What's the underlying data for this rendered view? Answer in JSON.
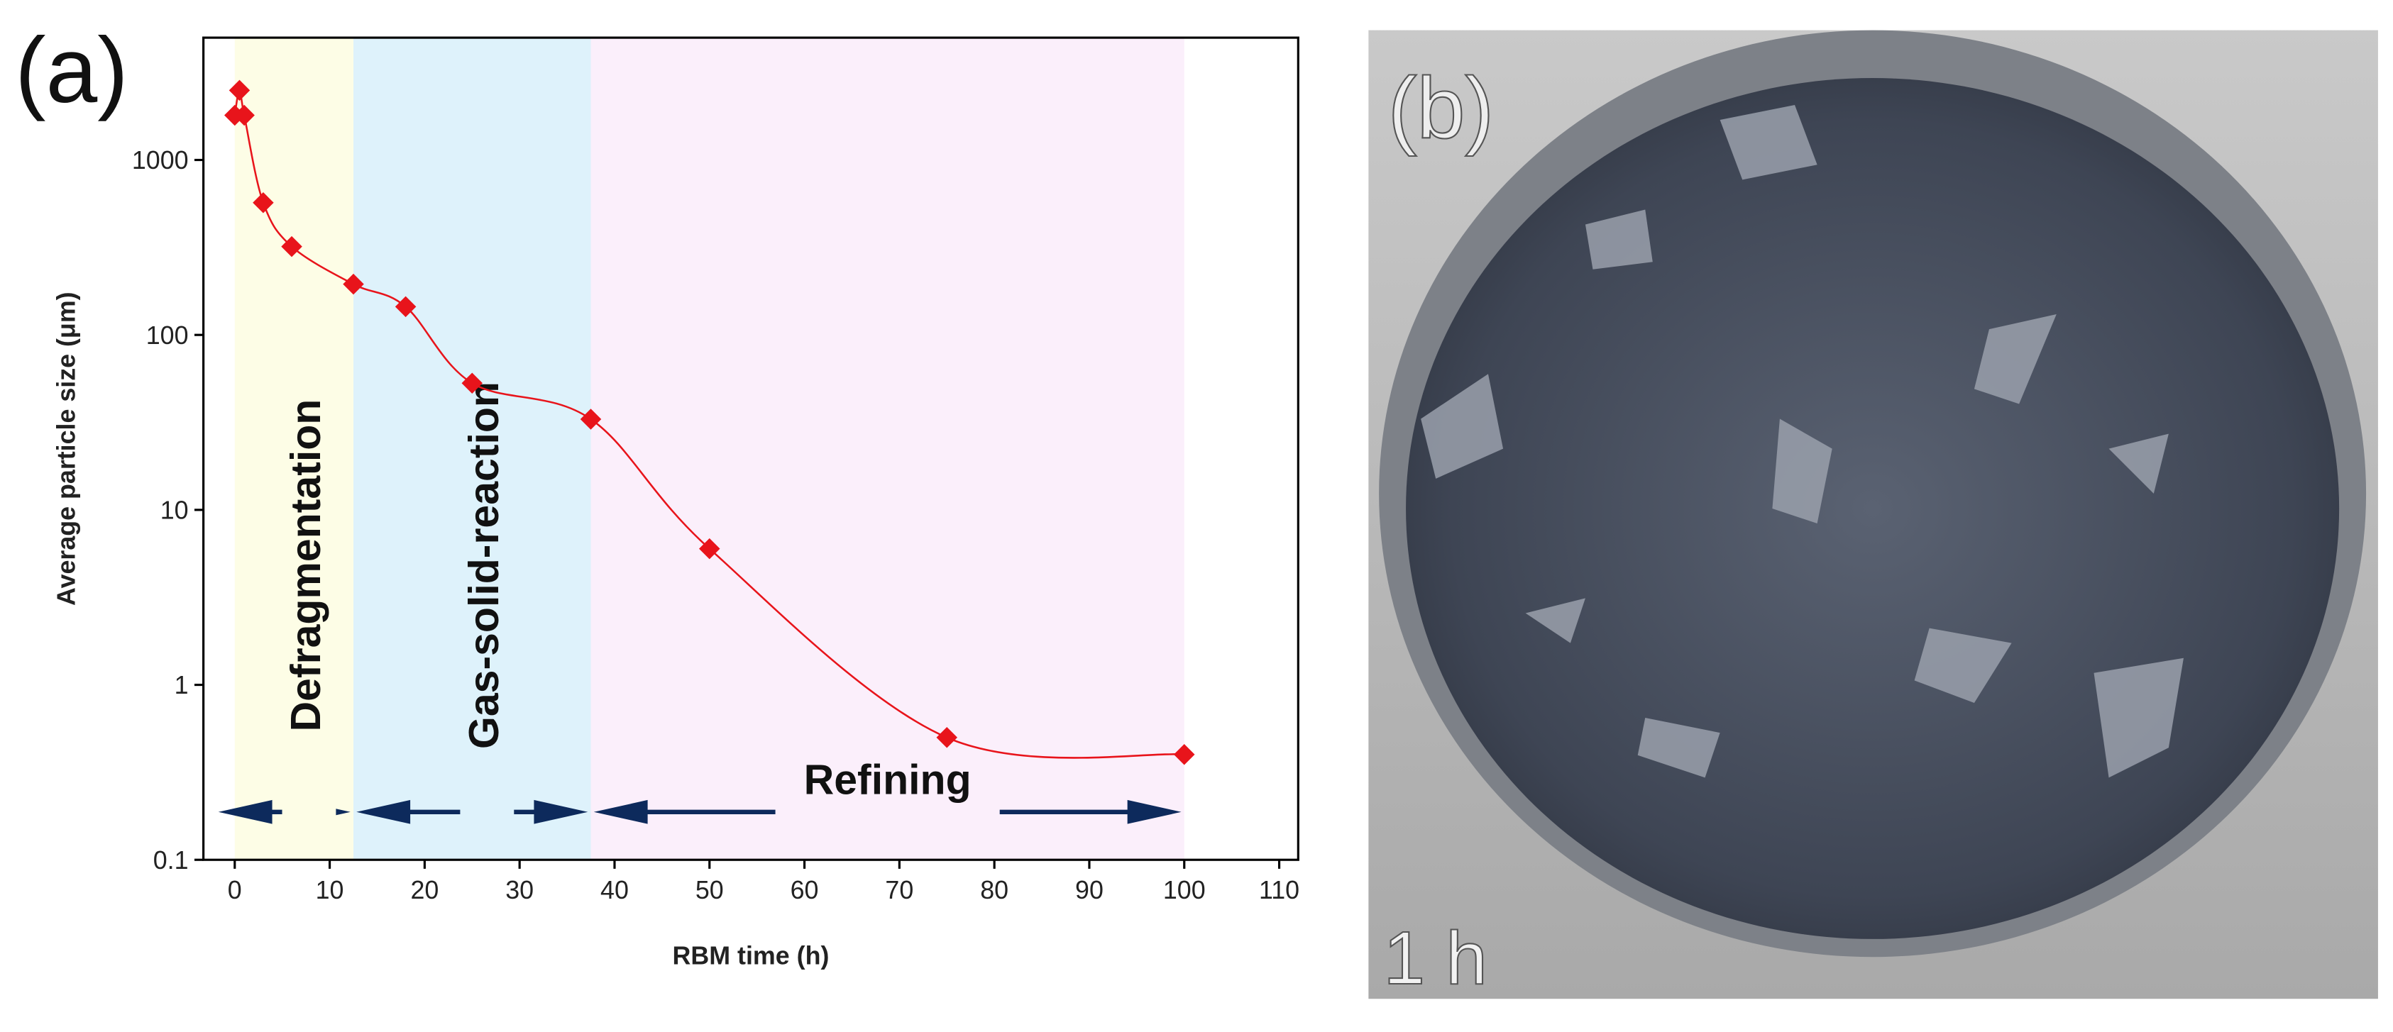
{
  "chart_data": {
    "type": "scatter",
    "x_label": "RBM time (h)",
    "y_label": "Average particle size (μm)",
    "x": [
      0,
      0.5,
      1,
      3,
      6,
      12.5,
      18,
      25,
      37.5,
      50,
      75,
      100
    ],
    "values": [
      1800,
      2500,
      1800,
      570,
      320,
      195,
      145,
      53,
      33,
      6,
      0.5,
      0.4
    ],
    "color": "#e8141b",
    "line_color": "#e8141b",
    "xlim": [
      -3.3,
      112
    ],
    "ylim": [
      0.1,
      5000
    ],
    "y_log_scale": true,
    "xticks": [
      0,
      10,
      20,
      30,
      40,
      50,
      60,
      70,
      80,
      90,
      100,
      110
    ],
    "yticks": [
      0.1,
      1,
      10,
      100,
      1000
    ],
    "regions": [
      {
        "label": "Defragmentation",
        "x": [
          0,
          12.5
        ],
        "color": "#fdfde6",
        "vertical": true
      },
      {
        "label": "Gas-solid-reaction",
        "x": [
          12.5,
          37.5
        ],
        "color": "#def2fb",
        "vertical": true
      },
      {
        "label": "Refining",
        "x": [
          37.5,
          100
        ],
        "color": "#fbeffb",
        "vertical": false
      }
    ]
  },
  "panels": {
    "a_label": "(a)",
    "b_label": "(b)",
    "photo_caption": "1 h"
  }
}
